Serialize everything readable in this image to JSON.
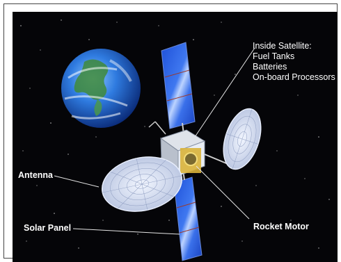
{
  "labels": {
    "inside_title": "Inside Satellite:",
    "inside_items": [
      "Fuel Tanks",
      "Batteries",
      "On-board Processors"
    ],
    "antenna": "Antenna",
    "solar_panel": "Solar Panel",
    "rocket_motor": "Rocket Motor"
  },
  "colors": {
    "space": "#050508",
    "earth_ocean": "#2f6fd6",
    "solar_cell": "#2b5fe0",
    "dish": "#cfd8ee",
    "gold": "#d9b23a"
  }
}
